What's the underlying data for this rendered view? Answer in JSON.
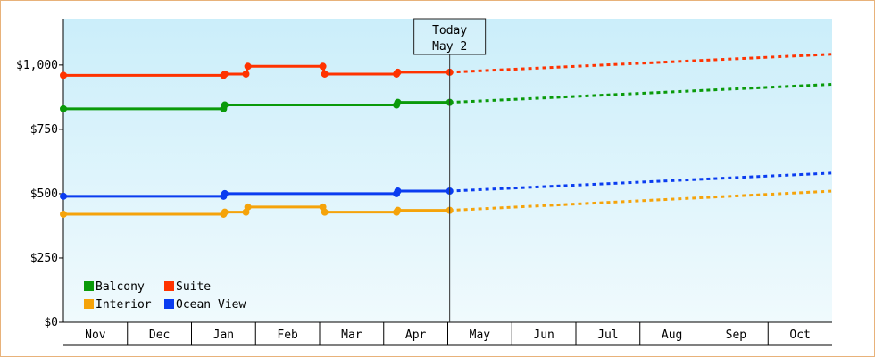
{
  "chart_data": {
    "type": "line",
    "title": "",
    "xlabel": "",
    "ylabel": "",
    "categories": [
      "Nov",
      "Dec",
      "Jan",
      "Feb",
      "Mar",
      "Apr",
      "May",
      "Jun",
      "Jul",
      "Aug",
      "Sep",
      "Oct"
    ],
    "y_ticks": [
      "$0",
      "$250",
      "$500",
      "$750",
      "$1,000"
    ],
    "ylim": [
      0,
      1180
    ],
    "grid": false,
    "legend_position": "bottom-left",
    "today_marker": {
      "line1": "Today",
      "line2": "May 2",
      "x": 6.03
    },
    "background": {
      "top": "#cbeefa",
      "bottom": "#f0fafd"
    },
    "series": [
      {
        "name": "Balcony",
        "color": "#0a9a0a",
        "points": [
          [
            0.0,
            830
          ],
          [
            2.5,
            830
          ],
          [
            2.52,
            845
          ],
          [
            5.2,
            845
          ],
          [
            5.22,
            855
          ],
          [
            6.03,
            855
          ]
        ],
        "forecast": [
          [
            6.03,
            855
          ],
          [
            12.0,
            925
          ]
        ]
      },
      {
        "name": "Suite",
        "color": "#ff3300",
        "points": [
          [
            0.0,
            960
          ],
          [
            2.5,
            960
          ],
          [
            2.52,
            965
          ],
          [
            2.85,
            965
          ],
          [
            2.88,
            995
          ],
          [
            4.05,
            995
          ],
          [
            4.08,
            965
          ],
          [
            5.2,
            965
          ],
          [
            5.22,
            972
          ],
          [
            6.03,
            972
          ]
        ],
        "forecast": [
          [
            6.03,
            972
          ],
          [
            12.0,
            1042
          ]
        ]
      },
      {
        "name": "Interior",
        "color": "#f5a30a",
        "points": [
          [
            0.0,
            420
          ],
          [
            2.5,
            420
          ],
          [
            2.52,
            428
          ],
          [
            2.85,
            428
          ],
          [
            2.88,
            448
          ],
          [
            4.05,
            448
          ],
          [
            4.08,
            428
          ],
          [
            5.2,
            428
          ],
          [
            5.22,
            435
          ],
          [
            6.03,
            435
          ]
        ],
        "forecast": [
          [
            6.03,
            435
          ],
          [
            12.0,
            510
          ]
        ]
      },
      {
        "name": "Ocean View",
        "color": "#0a3cf0",
        "points": [
          [
            0.0,
            490
          ],
          [
            2.5,
            490
          ],
          [
            2.52,
            500
          ],
          [
            5.2,
            500
          ],
          [
            5.22,
            510
          ],
          [
            6.03,
            510
          ]
        ],
        "forecast": [
          [
            6.03,
            510
          ],
          [
            12.0,
            580
          ]
        ]
      }
    ]
  }
}
